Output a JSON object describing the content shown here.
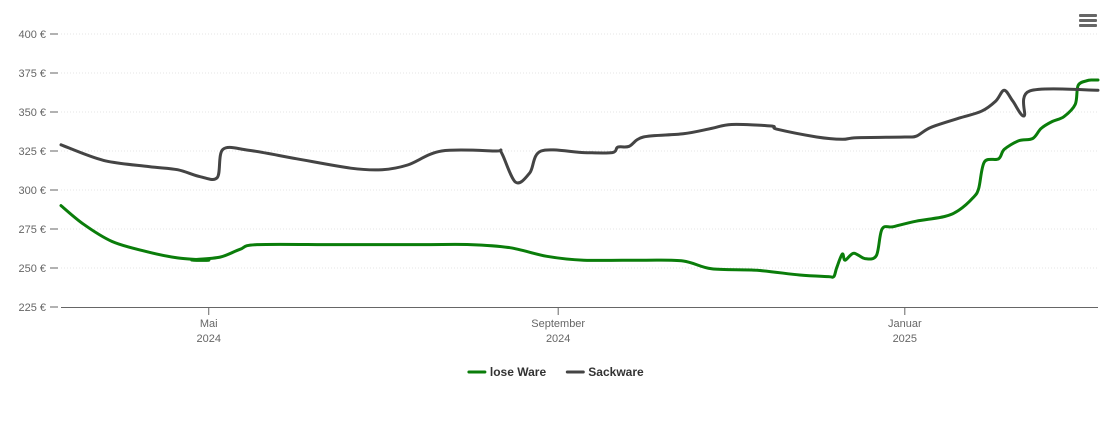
{
  "menu": {
    "icon": "hamburger-menu-icon"
  },
  "chart_data": {
    "type": "line",
    "title": "",
    "xlabel": "",
    "ylabel": "",
    "ylim": [
      225,
      400
    ],
    "yticks": [
      225,
      250,
      275,
      300,
      325,
      350,
      375,
      400
    ],
    "ytick_labels": [
      "225 €",
      "250 €",
      "275 €",
      "300 €",
      "325 €",
      "350 €",
      "375 €",
      "400 €"
    ],
    "xlim": [
      "2024-03-10",
      "2025-03-10"
    ],
    "xticks": [
      {
        "date": "2024-05-01",
        "line1": "Mai",
        "line2": "2024"
      },
      {
        "date": "2024-09-01",
        "line1": "September",
        "line2": "2024"
      },
      {
        "date": "2025-01-01",
        "line1": "Januar",
        "line2": "2025"
      }
    ],
    "grid": true,
    "legend": "bottom-center",
    "series": [
      {
        "name": "lose Ware",
        "color": "#0a7d0a",
        "points": [
          [
            "2024-03-10",
            290
          ],
          [
            "2024-03-18",
            278
          ],
          [
            "2024-03-28",
            267
          ],
          [
            "2024-04-08",
            261
          ],
          [
            "2024-04-20",
            256.5
          ],
          [
            "2024-05-01",
            255
          ],
          [
            "2024-04-25",
            255.2
          ],
          [
            "2024-05-05",
            257
          ],
          [
            "2024-05-12",
            262
          ],
          [
            "2024-05-18",
            265
          ],
          [
            "2024-06-15",
            265
          ],
          [
            "2024-07-15",
            265
          ],
          [
            "2024-08-01",
            265
          ],
          [
            "2024-08-15",
            263
          ],
          [
            "2024-08-28",
            257.5
          ],
          [
            "2024-09-10",
            255
          ],
          [
            "2024-10-01",
            255
          ],
          [
            "2024-10-15",
            254.5
          ],
          [
            "2024-10-25",
            249.5
          ],
          [
            "2024-11-10",
            248.5
          ],
          [
            "2024-11-25",
            245.5
          ],
          [
            "2024-12-05",
            244.5
          ],
          [
            "2024-12-07",
            244.5
          ],
          [
            "2024-12-08",
            250
          ],
          [
            "2024-12-10",
            259
          ],
          [
            "2024-12-11",
            255
          ],
          [
            "2024-12-14",
            259.5
          ],
          [
            "2024-12-18",
            256
          ],
          [
            "2024-12-22",
            258
          ],
          [
            "2024-12-24",
            275
          ],
          [
            "2024-12-28",
            276.5
          ],
          [
            "2025-01-05",
            280
          ],
          [
            "2025-01-15",
            283
          ],
          [
            "2025-01-20",
            287
          ],
          [
            "2025-01-25",
            295
          ],
          [
            "2025-01-27",
            301
          ],
          [
            "2025-01-29",
            318
          ],
          [
            "2025-02-03",
            320
          ],
          [
            "2025-02-05",
            326
          ],
          [
            "2025-02-10",
            331.5
          ],
          [
            "2025-02-15",
            333
          ],
          [
            "2025-02-18",
            339.5
          ],
          [
            "2025-02-22",
            344
          ],
          [
            "2025-02-26",
            347
          ],
          [
            "2025-03-02",
            355
          ],
          [
            "2025-03-03",
            367
          ],
          [
            "2025-03-06",
            370
          ],
          [
            "2025-03-08",
            370.5
          ],
          [
            "2025-03-10",
            370.5
          ]
        ]
      },
      {
        "name": "Sackware",
        "color": "#444444",
        "points": [
          [
            "2024-03-10",
            329
          ],
          [
            "2024-03-25",
            319
          ],
          [
            "2024-04-10",
            315
          ],
          [
            "2024-04-20",
            313
          ],
          [
            "2024-04-28",
            308.5
          ],
          [
            "2024-05-04",
            308
          ],
          [
            "2024-05-06",
            326
          ],
          [
            "2024-05-15",
            325.5
          ],
          [
            "2024-06-01",
            320
          ],
          [
            "2024-06-20",
            314
          ],
          [
            "2024-07-01",
            313
          ],
          [
            "2024-07-10",
            316
          ],
          [
            "2024-07-22",
            325
          ],
          [
            "2024-08-10",
            325
          ],
          [
            "2024-08-12",
            324
          ],
          [
            "2024-08-17",
            305
          ],
          [
            "2024-08-22",
            311
          ],
          [
            "2024-08-26",
            325
          ],
          [
            "2024-09-10",
            324
          ],
          [
            "2024-09-20",
            324
          ],
          [
            "2024-09-22",
            327.5
          ],
          [
            "2024-09-26",
            328
          ],
          [
            "2024-10-01",
            334
          ],
          [
            "2024-10-15",
            336
          ],
          [
            "2024-10-25",
            339.5
          ],
          [
            "2024-11-01",
            342
          ],
          [
            "2024-11-15",
            341
          ],
          [
            "2024-11-17",
            339
          ],
          [
            "2024-12-01",
            334
          ],
          [
            "2024-12-10",
            332.5
          ],
          [
            "2024-12-15",
            333.5
          ],
          [
            "2025-01-01",
            334
          ],
          [
            "2025-01-05",
            334.5
          ],
          [
            "2025-01-10",
            340
          ],
          [
            "2025-01-20",
            346
          ],
          [
            "2025-01-28",
            350.5
          ],
          [
            "2025-02-02",
            357
          ],
          [
            "2025-02-05",
            364
          ],
          [
            "2025-02-08",
            357
          ],
          [
            "2025-02-12",
            347.5
          ],
          [
            "2025-02-14",
            363.5
          ],
          [
            "2025-03-10",
            364
          ]
        ]
      }
    ]
  }
}
